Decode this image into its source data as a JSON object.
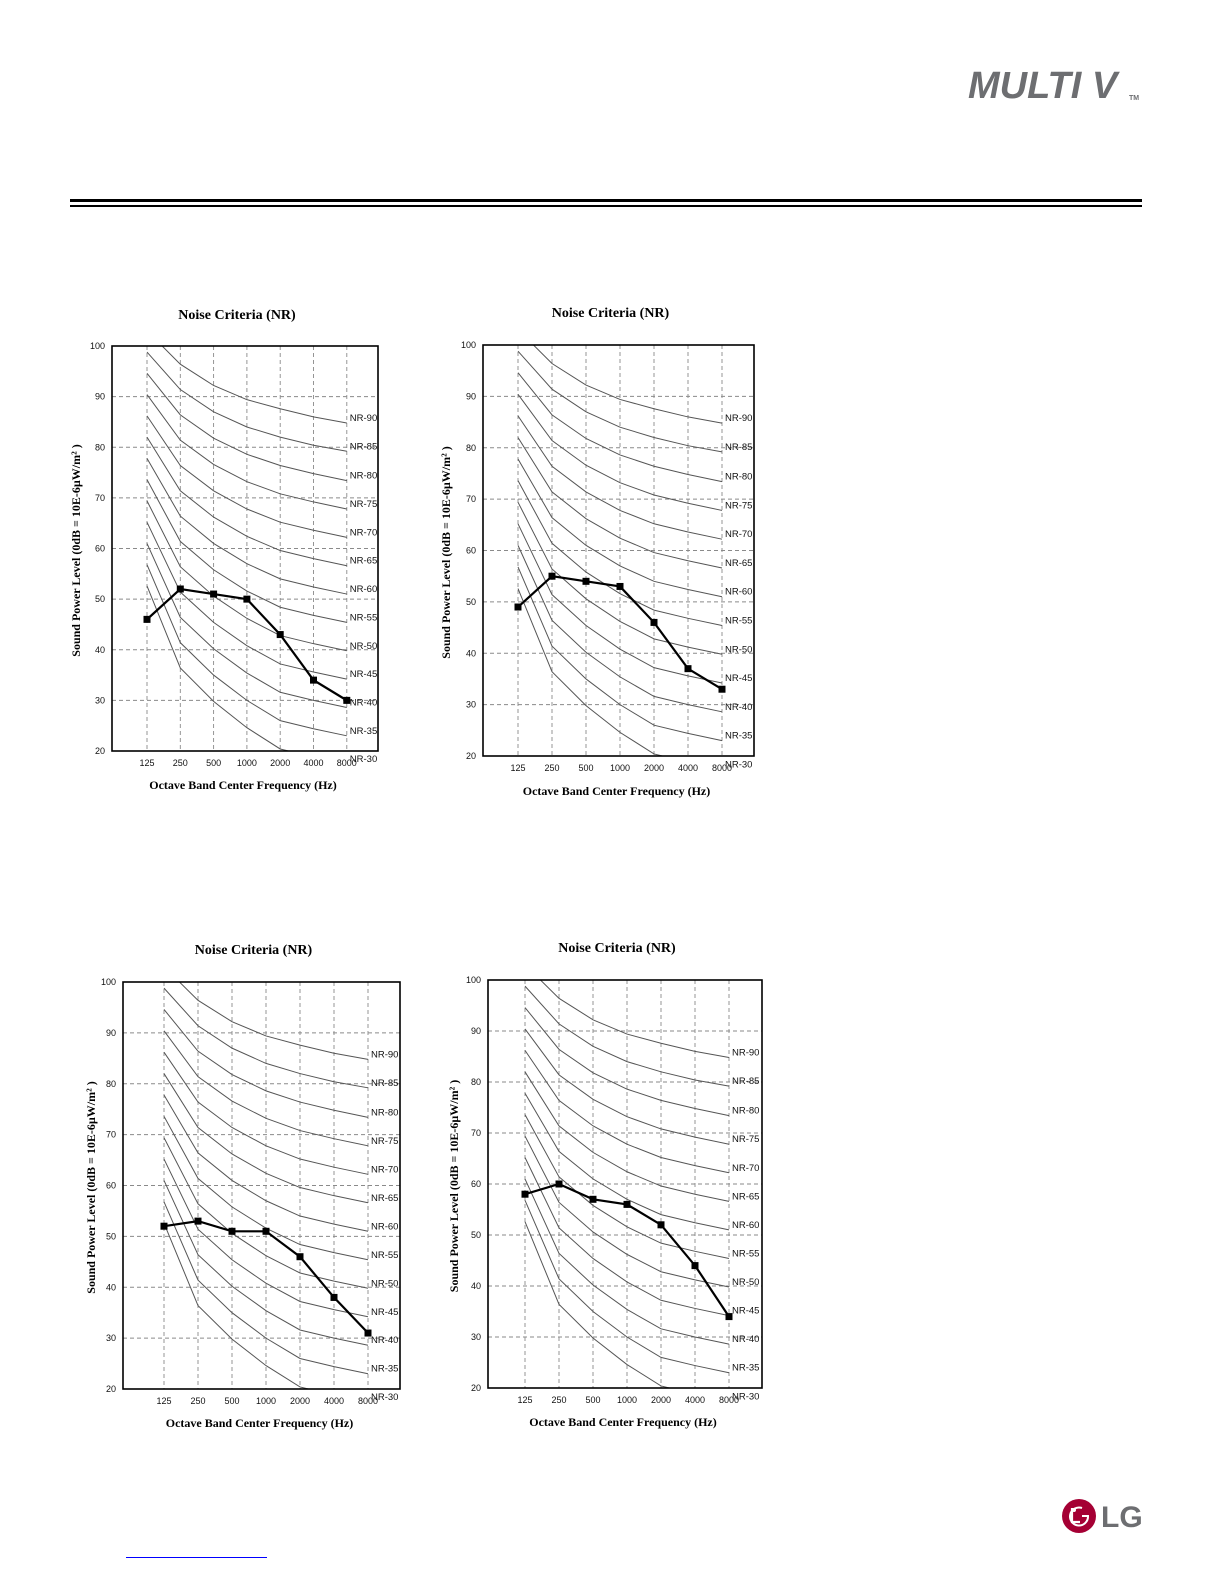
{
  "header": {
    "brand_logo": "MULTI V",
    "brand_tm": "TM"
  },
  "footer": {
    "lg_logo": "LG"
  },
  "nr_curves": {
    "labels": [
      "NR-90",
      "NR-85",
      "NR-80",
      "NR-75",
      "NR-70",
      "NR-65",
      "NR-60",
      "NR-55",
      "NR-50",
      "NR-45",
      "NR-40",
      "NR-35",
      "NR-30"
    ],
    "values": [
      [
        103.0,
        96.4,
        92.2,
        89.4,
        87.6,
        86.0,
        84.8
      ],
      [
        98.8,
        91.4,
        87.0,
        84.0,
        82.0,
        80.4,
        79.2
      ],
      [
        94.6,
        86.4,
        81.8,
        78.6,
        76.4,
        74.8,
        73.4
      ],
      [
        90.4,
        81.4,
        76.6,
        73.2,
        70.8,
        69.2,
        67.8
      ],
      [
        86.2,
        76.4,
        71.4,
        67.8,
        65.2,
        63.6,
        62.2
      ],
      [
        82.0,
        71.4,
        66.2,
        62.4,
        59.6,
        58.0,
        56.6
      ],
      [
        77.8,
        66.4,
        61.0,
        57.0,
        54.0,
        52.4,
        51.0
      ],
      [
        73.6,
        61.4,
        55.8,
        51.6,
        48.4,
        46.8,
        45.4
      ],
      [
        69.4,
        56.4,
        50.6,
        46.2,
        42.8,
        41.2,
        39.8
      ],
      [
        65.2,
        51.4,
        45.4,
        40.8,
        37.2,
        35.6,
        34.2
      ],
      [
        61.0,
        46.4,
        40.2,
        35.4,
        31.6,
        30.0,
        28.6
      ],
      [
        56.8,
        41.4,
        35.0,
        30.0,
        26.0,
        24.4,
        23.0
      ],
      [
        52.6,
        36.4,
        29.8,
        24.6,
        20.4,
        18.8,
        17.4
      ]
    ]
  },
  "chart_data": [
    {
      "type": "line",
      "title": "Noise Criteria (NR)",
      "xlabel": "Octave Band Center Frequency  (Hz)",
      "ylabel": "Sound Power Level  (0dB  = 10E-6µW/m²  )",
      "categories": [
        "125",
        "250",
        "500",
        "1000",
        "2000",
        "4000",
        "8000"
      ],
      "yticks": [
        "20",
        "30",
        "40",
        "50",
        "60",
        "70",
        "80",
        "90",
        "100"
      ],
      "ylim": [
        20,
        100
      ],
      "grid": true,
      "series": [
        {
          "values": [
            46,
            52,
            51,
            50,
            43,
            34,
            30
          ]
        }
      ]
    },
    {
      "type": "line",
      "title": "Noise Criteria (NR)",
      "xlabel": "Octave Band Center Frequency  (Hz)",
      "ylabel": "Sound Power Level  (0dB  = 10E-6µW/m²  )",
      "categories": [
        "125",
        "250",
        "500",
        "1000",
        "2000",
        "4000",
        "8000"
      ],
      "yticks": [
        "20",
        "30",
        "40",
        "50",
        "60",
        "70",
        "80",
        "90",
        "100"
      ],
      "ylim": [
        20,
        100
      ],
      "grid": true,
      "series": [
        {
          "values": [
            49,
            55,
            54,
            53,
            46,
            37,
            33
          ]
        }
      ]
    },
    {
      "type": "line",
      "title": "Noise Criteria (NR)",
      "xlabel": "Octave Band Center Frequency  (Hz)",
      "ylabel": "Sound Power Level  (0dB  = 10E-6µW/m²  )",
      "categories": [
        "125",
        "250",
        "500",
        "1000",
        "2000",
        "4000",
        "8000"
      ],
      "yticks": [
        "20",
        "30",
        "40",
        "50",
        "60",
        "70",
        "80",
        "90",
        "100"
      ],
      "ylim": [
        20,
        100
      ],
      "grid": true,
      "series": [
        {
          "values": [
            52,
            53,
            51,
            51,
            46,
            38,
            31
          ]
        }
      ]
    },
    {
      "type": "line",
      "title": "Noise Criteria (NR)",
      "xlabel": "Octave Band Center Frequency  (Hz)",
      "ylabel": "Sound Power Level  (0dB  = 10E-6µW/m²  )",
      "categories": [
        "125",
        "250",
        "500",
        "1000",
        "2000",
        "4000",
        "8000"
      ],
      "yticks": [
        "20",
        "30",
        "40",
        "50",
        "60",
        "70",
        "80",
        "90",
        "100"
      ],
      "ylim": [
        20,
        100
      ],
      "grid": true,
      "series": [
        {
          "values": [
            58,
            60,
            57,
            56,
            52,
            44,
            34
          ]
        }
      ]
    }
  ]
}
